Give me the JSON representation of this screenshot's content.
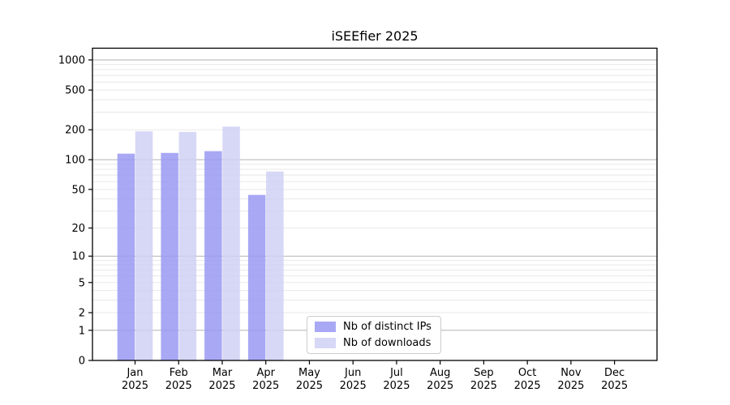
{
  "chart_data": {
    "type": "bar",
    "title": "iSEEfier 2025",
    "categories": [
      "Jan",
      "Feb",
      "Mar",
      "Apr",
      "May",
      "Jun",
      "Jul",
      "Aug",
      "Sep",
      "Oct",
      "Nov",
      "Dec"
    ],
    "category_year": "2025",
    "series": [
      {
        "name": "Nb of distinct IPs",
        "color": "#9999f3",
        "values": [
          115,
          117,
          122,
          44,
          null,
          null,
          null,
          null,
          null,
          null,
          null,
          null
        ]
      },
      {
        "name": "Nb of downloads",
        "color": "#d0d0f5",
        "values": [
          193,
          190,
          215,
          76,
          null,
          null,
          null,
          null,
          null,
          null,
          null,
          null
        ]
      }
    ],
    "y_scale": "log1p",
    "y_ticks": [
      0,
      1,
      2,
      5,
      10,
      20,
      50,
      100,
      200,
      500,
      1000
    ],
    "y_decade_gridlines": [
      1,
      10,
      100,
      1000
    ],
    "ylim": [
      0,
      1310
    ],
    "xlabel": "",
    "ylabel": "",
    "grid": "both",
    "legend_position": "inside lower-center",
    "colors": {
      "grid_major": "#b2b2b2",
      "grid_minor": "#e8e8e8",
      "spine": "#000000",
      "background": "#ffffff"
    }
  }
}
